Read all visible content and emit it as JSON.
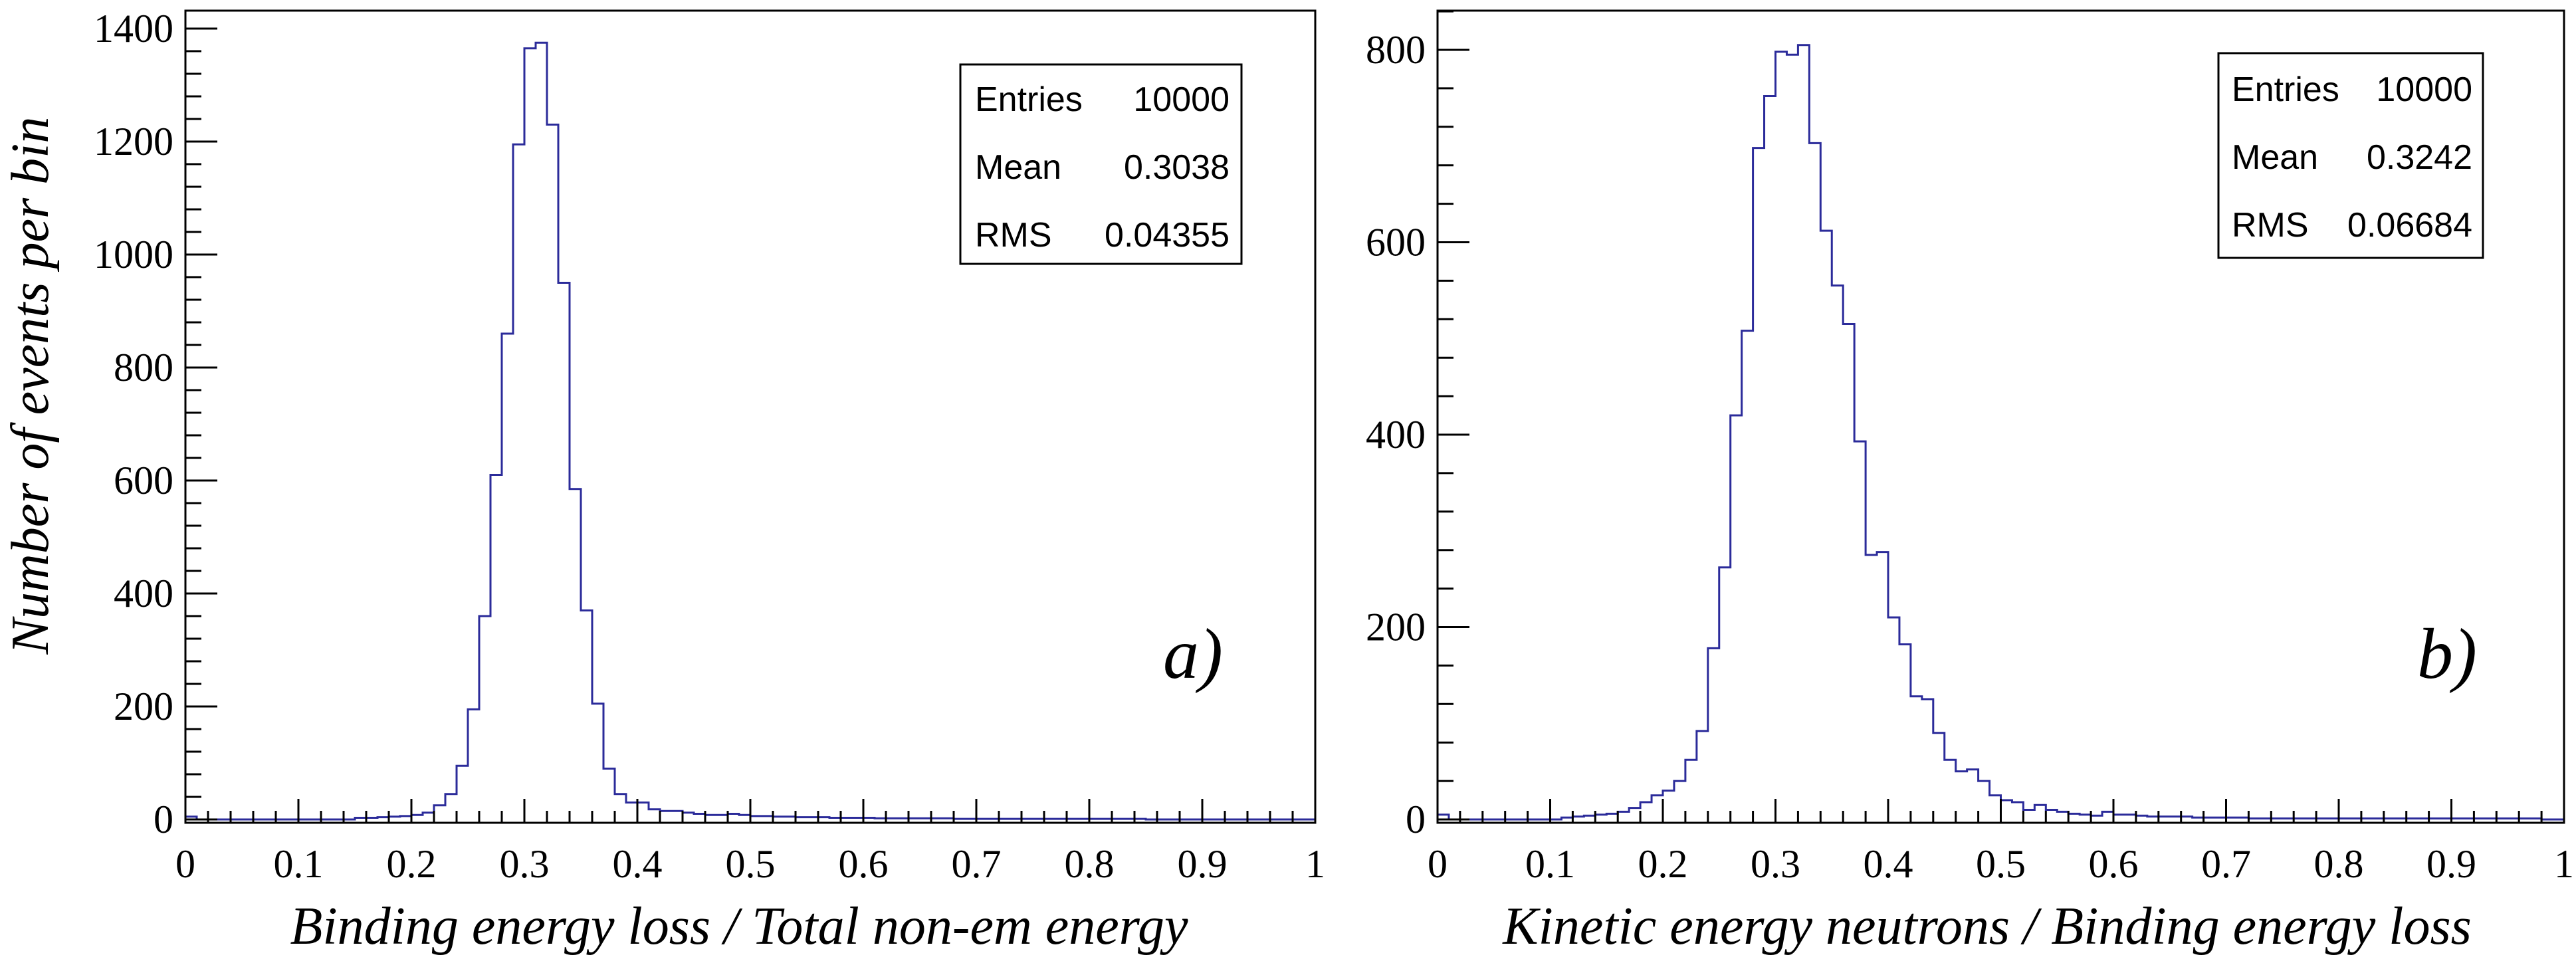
{
  "ylabel": "Number of events per bin",
  "chart_data": [
    {
      "type": "histogram",
      "panel_label": "a)",
      "xlabel": "Binding energy loss / Total non-em energy",
      "xlim": [
        0,
        1
      ],
      "ylim": [
        0,
        1450
      ],
      "x_ticks": [
        "0",
        "0.1",
        "0.2",
        "0.3",
        "0.4",
        "0.5",
        "0.6",
        "0.7",
        "0.8",
        "0.9",
        "1"
      ],
      "y_ticks": [
        "0",
        "200",
        "400",
        "600",
        "800",
        "1000",
        "1200",
        "1400"
      ],
      "bin_width": 0.01,
      "bin_start": 0.0,
      "values": [
        5,
        0,
        0,
        0,
        0,
        0,
        0,
        0,
        0,
        0,
        0,
        0,
        0,
        0,
        0,
        3,
        3,
        4,
        5,
        6,
        8,
        12,
        25,
        45,
        95,
        195,
        360,
        610,
        860,
        1195,
        1365,
        1375,
        1230,
        950,
        585,
        370,
        205,
        90,
        45,
        30,
        30,
        18,
        15,
        15,
        12,
        10,
        8,
        8,
        10,
        8,
        6,
        6,
        5,
        5,
        4,
        4,
        4,
        3,
        3,
        3,
        3,
        2,
        2,
        2,
        2,
        2,
        2,
        2,
        1,
        1,
        1,
        1,
        1,
        1,
        1,
        1,
        1,
        1,
        1,
        1,
        1,
        1,
        1,
        1,
        1,
        0,
        0,
        0,
        0,
        0,
        0,
        0,
        0,
        0,
        0,
        0,
        0,
        0,
        0,
        0
      ],
      "stats": [
        {
          "label": "Entries",
          "value": "10000"
        },
        {
          "label": "Mean",
          "value": "0.3038"
        },
        {
          "label": "RMS",
          "value": "0.04355"
        }
      ],
      "line_color": "#2b2b9a",
      "grid": false
    },
    {
      "type": "histogram",
      "panel_label": "b)",
      "xlabel": "Kinetic energy neutrons / Binding energy loss",
      "xlim": [
        0,
        1
      ],
      "ylim": [
        0,
        840
      ],
      "x_ticks": [
        "0",
        "0.1",
        "0.2",
        "0.3",
        "0.4",
        "0.5",
        "0.6",
        "0.7",
        "0.8",
        "0.9",
        "1"
      ],
      "y_ticks": [
        "0",
        "200",
        "400",
        "600",
        "800"
      ],
      "bin_width": 0.01,
      "bin_start": 0.0,
      "values": [
        5,
        0,
        0,
        0,
        0,
        0,
        0,
        0,
        0,
        0,
        0,
        2,
        3,
        4,
        5,
        6,
        8,
        12,
        18,
        25,
        30,
        40,
        62,
        92,
        178,
        262,
        420,
        508,
        698,
        752,
        798,
        795,
        805,
        703,
        612,
        555,
        515,
        393,
        275,
        278,
        210,
        182,
        128,
        125,
        90,
        62,
        50,
        52,
        40,
        25,
        20,
        18,
        10,
        15,
        10,
        8,
        6,
        5,
        4,
        8,
        5,
        5,
        4,
        3,
        3,
        3,
        3,
        2,
        2,
        2,
        2,
        2,
        1,
        1,
        1,
        1,
        1,
        1,
        1,
        1,
        1,
        1,
        1,
        1,
        1,
        1,
        1,
        1,
        1,
        1,
        1,
        1,
        1,
        1,
        1,
        1,
        1,
        1,
        0,
        0
      ],
      "stats": [
        {
          "label": "Entries",
          "value": "10000"
        },
        {
          "label": "Mean",
          "value": "0.3242"
        },
        {
          "label": "RMS",
          "value": "0.06684"
        }
      ],
      "line_color": "#2b2b9a",
      "grid": false
    }
  ]
}
